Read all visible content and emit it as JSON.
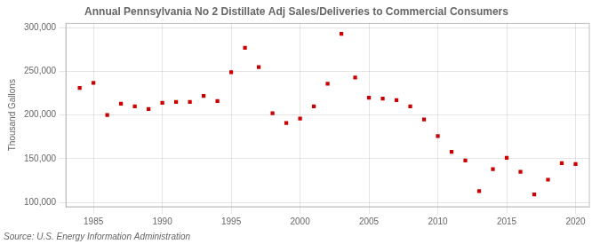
{
  "chart_data": {
    "type": "scatter",
    "title": "Annual Pennsylvania No 2 Distillate Adj Sales/Deliveries to Commercial Consumers",
    "y_label": "Thousand Gallons",
    "source": "Source: U.S. Energy Information Administration",
    "color": "#cc0000",
    "marker": "square",
    "grid": true,
    "xlim": [
      1983.0,
      2021.0
    ],
    "ylim": [
      95000,
      305000
    ],
    "xticks": [
      1985,
      1990,
      1995,
      2000,
      2005,
      2010,
      2015,
      2020
    ],
    "yticks": [
      {
        "value": 100000,
        "label": "100,000"
      },
      {
        "value": 150000,
        "label": "150,000"
      },
      {
        "value": 200000,
        "label": "200,000"
      },
      {
        "value": 250000,
        "label": "250,000"
      },
      {
        "value": 300000,
        "label": "300,000"
      }
    ],
    "x": [
      1984,
      1985,
      1986,
      1987,
      1988,
      1989,
      1990,
      1991,
      1992,
      1993,
      1994,
      1995,
      1996,
      1997,
      1998,
      1999,
      2000,
      2001,
      2002,
      2003,
      2004,
      2005,
      2006,
      2007,
      2008,
      2009,
      2010,
      2011,
      2012,
      2013,
      2014,
      2015,
      2016,
      2017,
      2018,
      2019,
      2020
    ],
    "values": [
      231000,
      237000,
      200000,
      213000,
      210000,
      207000,
      214000,
      215000,
      215000,
      222000,
      216000,
      249000,
      277000,
      255000,
      202000,
      191000,
      196000,
      210000,
      236000,
      293000,
      243000,
      220000,
      219000,
      217000,
      210000,
      195000,
      176000,
      158000,
      148000,
      113000,
      138000,
      151000,
      135000,
      109000,
      126000,
      145000,
      144000
    ]
  }
}
